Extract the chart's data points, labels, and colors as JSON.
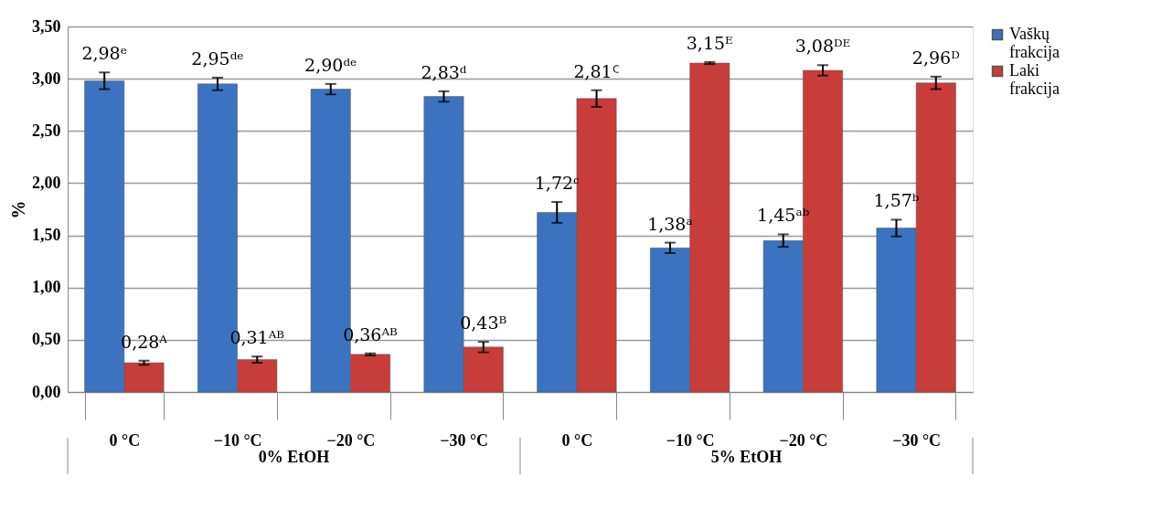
{
  "chart_data": {
    "type": "bar",
    "ylabel": "%",
    "categories": [
      "0 °C",
      "−10 °C",
      "−20 °C",
      "−30 °C",
      "0 °C",
      "−10 °C",
      "−20 °C",
      "−30 °C"
    ],
    "annotations": [
      "0% EtOH",
      "5% EtOH"
    ],
    "series": [
      {
        "name": "Vaškų frakcija",
        "color": "#3b73c0",
        "values": [
          2.98,
          2.95,
          2.9,
          2.83,
          1.72,
          1.38,
          1.45,
          1.57
        ],
        "errors": [
          0.08,
          0.06,
          0.05,
          0.05,
          0.1,
          0.05,
          0.06,
          0.08
        ],
        "value_labels": [
          "2,98ᵉ",
          "2,95ᵈᵉ",
          "2,90ᵈᵉ",
          "2,83ᵈ",
          "1,72ᶜ",
          "1,38ᵃ",
          "1,45ᵃᵇ",
          "1,57ᵇ"
        ]
      },
      {
        "name": "Laki frakcija",
        "color": "#c83c3a",
        "values": [
          0.28,
          0.31,
          0.36,
          0.43,
          2.81,
          3.15,
          3.08,
          2.96
        ],
        "errors": [
          0.02,
          0.03,
          0.01,
          0.05,
          0.08,
          0.01,
          0.05,
          0.06
        ],
        "value_labels": [
          "0,28ᴬ",
          "0,31ᴬᴮ",
          "0,36ᴬᴮ",
          "0,43ᴮ",
          "2,81ꟲ",
          "3,15ᴱ",
          "3,08ᴰᴱ",
          "2,96ᴰ"
        ]
      }
    ],
    "ylim": [
      0,
      3.5
    ],
    "yticks": [
      {
        "value": 0,
        "label": "0,00"
      },
      {
        "value": 0.5,
        "label": "0,50"
      },
      {
        "value": 1,
        "label": "1,00"
      },
      {
        "value": 1.5,
        "label": "1,50"
      },
      {
        "value": 2,
        "label": "2,00"
      },
      {
        "value": 2.5,
        "label": "2,50"
      },
      {
        "value": 3,
        "label": "3,00"
      },
      {
        "value": 3.5,
        "label": "3,50"
      }
    ],
    "grid": "y",
    "legend": "right"
  }
}
